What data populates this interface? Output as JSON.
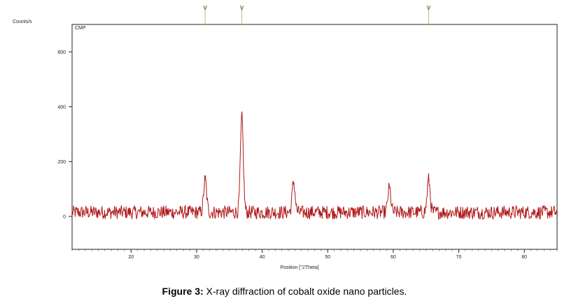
{
  "caption": {
    "prefix": "Figure 3:",
    "text": " X-ray diffraction of cobalt oxide nano particles."
  },
  "chart_data": {
    "type": "line",
    "title": "",
    "sample_label": "CMP",
    "ylabel": "Counts/s",
    "xlabel": "Position [°2Theta]",
    "xlim": [
      11,
      85
    ],
    "ylim": [
      -120,
      700
    ],
    "x_ticks": [
      20,
      30,
      40,
      50,
      60,
      70,
      80
    ],
    "y_ticks": [
      0,
      200,
      400,
      600
    ],
    "grid": false,
    "line_color": "#b01818",
    "reference_marker_color": "#d9b070",
    "reference_peaks": [
      31.3,
      36.9,
      65.4
    ],
    "peaks": [
      {
        "x": 31.3,
        "y": 135
      },
      {
        "x": 36.9,
        "y": 360
      },
      {
        "x": 44.8,
        "y": 125
      },
      {
        "x": 59.4,
        "y": 105
      },
      {
        "x": 65.4,
        "y": 135
      }
    ],
    "baseline": 15,
    "noise_amplitude": 25
  }
}
